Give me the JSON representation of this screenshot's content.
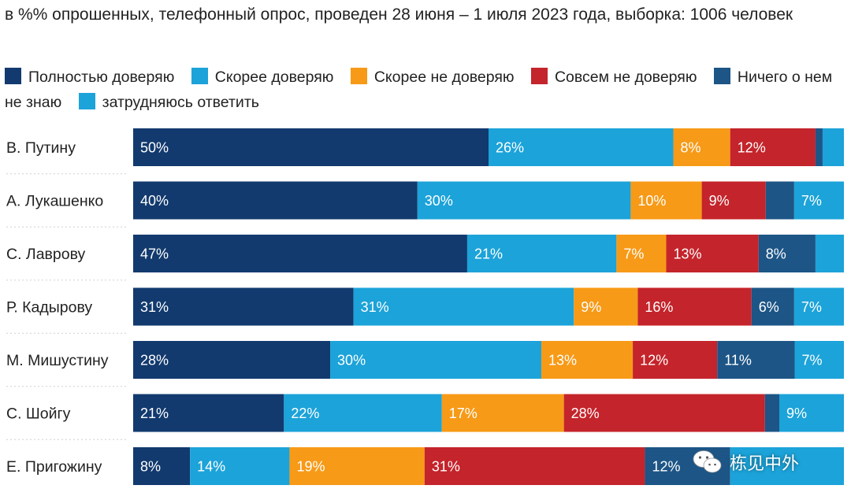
{
  "subtitle": "в %% опрошенных, телефонный опрос, проведен 28 июня – 1 июля 2023 года, выборка: 1006 человек",
  "watermark": {
    "text": "栋见中外",
    "icon": "wechat-icon"
  },
  "chart_data": {
    "type": "bar",
    "orientation": "horizontal",
    "stacked": true,
    "percent_stacked": true,
    "subtitle": "в %% опрошенных, телефонный опрос, проведен 28 июня – 1 июля 2023 года, выборка: 1006 человек",
    "legend_position": "top",
    "grid": false,
    "xlim": [
      0,
      100
    ],
    "categories": [
      "В. Путину",
      "А. Лукашенко",
      "С. Лаврову",
      "Р. Кадырову",
      "М. Мишустину",
      "С. Шойгу",
      "Е. Пригожину"
    ],
    "series": [
      {
        "name": "Полностью доверяю",
        "color": "#123a6e",
        "values": [
          50,
          40,
          47,
          31,
          28,
          21,
          8
        ],
        "labels": [
          "50%",
          "40%",
          "47%",
          "31%",
          "28%",
          "21%",
          "8%"
        ]
      },
      {
        "name": "Скорее доверяю",
        "color": "#1ca3d9",
        "values": [
          26,
          30,
          21,
          31,
          30,
          22,
          14
        ],
        "labels": [
          "26%",
          "30%",
          "21%",
          "31%",
          "30%",
          "22%",
          "14%"
        ]
      },
      {
        "name": "Скорее не доверяю",
        "color": "#f79a17",
        "values": [
          8,
          10,
          7,
          9,
          13,
          17,
          19
        ],
        "labels": [
          "8%",
          "10%",
          "7%",
          "9%",
          "13%",
          "17%",
          "19%"
        ]
      },
      {
        "name": "Совсем не доверяю",
        "color": "#c4242b",
        "values": [
          12,
          9,
          13,
          16,
          12,
          28,
          31
        ],
        "labels": [
          "12%",
          "9%",
          "13%",
          "16%",
          "12%",
          "28%",
          "31%"
        ]
      },
      {
        "name": "Ничего о нем не знаю",
        "color": "#1d5586",
        "values": [
          1,
          4,
          8,
          6,
          11,
          2,
          12
        ],
        "labels": [
          "",
          "",
          "8%",
          "6%",
          "11%",
          "",
          "12%"
        ]
      },
      {
        "name": "затрудняюсь ответить",
        "color": "#1ca3d9",
        "values": [
          3,
          7,
          4,
          7,
          7,
          9,
          16
        ],
        "labels": [
          "",
          "7%",
          "",
          "7%",
          "7%",
          "9%",
          ""
        ]
      }
    ]
  }
}
